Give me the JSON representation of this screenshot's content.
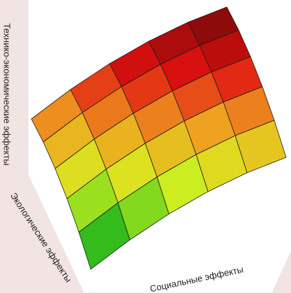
{
  "chart_data": {
    "type": "surface",
    "xlabel": "Социальные эффекты",
    "ylabel": "Экологические эффекты",
    "zlabel": "Технико-экономические эффекты",
    "x": [
      0,
      0.2,
      0.4,
      0.6,
      0.8,
      1
    ],
    "y": [
      0,
      0.2,
      0.4,
      0.6,
      0.8,
      1
    ],
    "z": [
      [
        0.05,
        0.17,
        0.27,
        0.35,
        0.41,
        0.45
      ],
      [
        0.2,
        0.32,
        0.42,
        0.5,
        0.56,
        0.6
      ],
      [
        0.33,
        0.45,
        0.55,
        0.63,
        0.69,
        0.73
      ],
      [
        0.44,
        0.56,
        0.66,
        0.74,
        0.8,
        0.84
      ],
      [
        0.53,
        0.65,
        0.75,
        0.83,
        0.89,
        0.93
      ],
      [
        0.6,
        0.72,
        0.82,
        0.9,
        0.96,
        1.0
      ]
    ],
    "zlim": [
      0,
      1
    ],
    "colormap": [
      "#0f5e2a",
      "#36c41a",
      "#d8f020",
      "#f0a020",
      "#e01010",
      "#700808"
    ]
  }
}
